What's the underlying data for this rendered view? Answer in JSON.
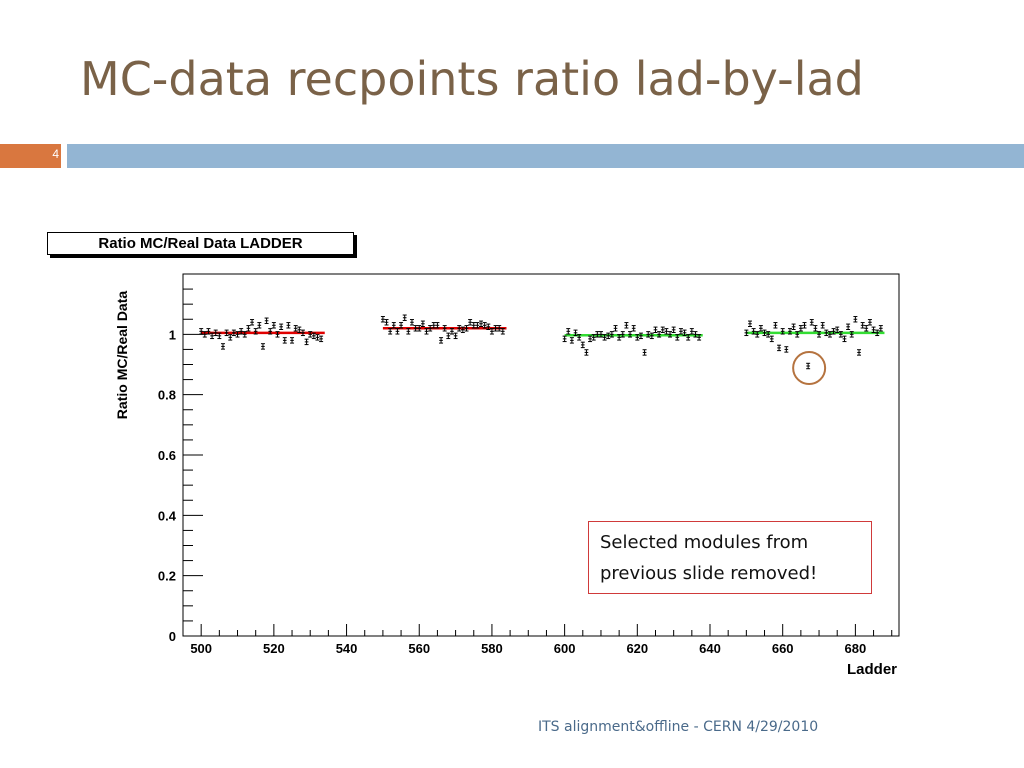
{
  "slide": {
    "title": "MC-data recpoints ratio lad-by-lad",
    "number": "4",
    "footer": "ITS alignment&offline - CERN 4/29/2010",
    "note_line1": "Selected modules from",
    "note_line2": "previous slide removed!"
  },
  "colors": {
    "title": "#7a6248",
    "number_box": "#d9773f",
    "title_bar": "#93b5d3",
    "fit_red": "#e00000",
    "fit_green": "#33dd33",
    "highlight_circle": "#b5733f",
    "note_border": "#d03a3a"
  },
  "chart_data": {
    "type": "scatter",
    "title": "Ratio MC/Real Data LADDER",
    "xlabel": "Ladder",
    "ylabel": "Ratio MC/Real Data",
    "xlim": [
      495,
      692
    ],
    "ylim": [
      0,
      1.2
    ],
    "x_ticks": [
      500,
      520,
      540,
      560,
      580,
      600,
      620,
      640,
      660,
      680
    ],
    "y_ticks": [
      0,
      0.2,
      0.4,
      0.6,
      0.8,
      1
    ],
    "y_tick_labels": [
      "0",
      "0.2",
      "0.4",
      "0.6",
      "0.8",
      "1"
    ],
    "error": 0.009,
    "fits": [
      {
        "x0": 500,
        "x1": 534,
        "y": 1.005,
        "color": "#e00000"
      },
      {
        "x0": 550,
        "x1": 584,
        "y": 1.02,
        "color": "#e00000"
      },
      {
        "x0": 600,
        "x1": 638,
        "y": 0.997,
        "color": "#33dd33"
      },
      {
        "x0": 650,
        "x1": 688,
        "y": 1.005,
        "color": "#33dd33"
      }
    ],
    "series": [
      {
        "x": [
          500,
          501,
          502,
          503,
          504,
          505,
          506,
          507,
          508,
          509,
          510,
          511,
          512,
          513,
          514,
          515,
          516,
          517,
          518,
          519,
          520,
          521,
          522,
          523,
          524,
          525,
          526,
          527,
          528,
          529,
          530,
          531,
          532,
          533
        ],
        "values": [
          1.01,
          1.0,
          1.01,
          0.995,
          1.005,
          0.995,
          0.96,
          1.005,
          0.99,
          1.005,
          1.0,
          1.01,
          1.0,
          1.02,
          1.04,
          1.01,
          1.03,
          0.96,
          1.045,
          1.01,
          1.03,
          1.0,
          1.025,
          0.98,
          1.03,
          0.98,
          1.02,
          1.015,
          1.005,
          0.975,
          1.0,
          0.995,
          0.99,
          0.985
        ]
      },
      {
        "x": [
          550,
          551,
          552,
          553,
          554,
          555,
          556,
          557,
          558,
          559,
          560,
          561,
          562,
          563,
          564,
          565,
          566,
          567,
          568,
          569,
          570,
          571,
          572,
          573,
          574,
          575,
          576,
          577,
          578,
          579,
          580,
          581,
          582,
          583
        ],
        "values": [
          1.05,
          1.04,
          1.01,
          1.03,
          1.01,
          1.03,
          1.055,
          1.01,
          1.04,
          1.02,
          1.02,
          1.035,
          1.01,
          1.02,
          1.03,
          1.03,
          0.98,
          1.02,
          0.995,
          1.01,
          0.995,
          1.02,
          1.015,
          1.02,
          1.04,
          1.03,
          1.03,
          1.035,
          1.03,
          1.025,
          1.01,
          1.02,
          1.02,
          1.01
        ]
      },
      {
        "x": [
          600,
          601,
          602,
          603,
          604,
          605,
          606,
          607,
          608,
          609,
          610,
          611,
          612,
          613,
          614,
          615,
          616,
          617,
          618,
          619,
          620,
          621,
          622,
          623,
          624,
          625,
          626,
          627,
          628,
          629,
          630,
          631,
          632,
          633,
          634,
          635,
          636,
          637
        ],
        "values": [
          0.985,
          1.01,
          0.98,
          1.005,
          0.99,
          0.965,
          0.94,
          0.985,
          0.99,
          1.0,
          1.0,
          0.99,
          0.995,
          1.0,
          1.02,
          0.99,
          1.0,
          1.03,
          1.0,
          1.02,
          0.99,
          0.995,
          0.94,
          1.0,
          0.995,
          1.015,
          1.0,
          1.015,
          1.01,
          1.0,
          1.015,
          0.99,
          1.01,
          1.005,
          0.99,
          1.01,
          1.0,
          0.99
        ]
      },
      {
        "x": [
          650,
          651,
          652,
          653,
          654,
          655,
          656,
          657,
          658,
          659,
          660,
          661,
          662,
          663,
          664,
          665,
          666,
          667,
          668,
          669,
          670,
          671,
          672,
          673,
          674,
          675,
          676,
          677,
          678,
          679,
          680,
          681,
          682,
          683,
          684,
          685,
          686,
          687
        ],
        "values": [
          1.005,
          1.035,
          1.01,
          1.0,
          1.02,
          1.005,
          1.0,
          0.985,
          1.03,
          0.955,
          1.01,
          0.95,
          1.01,
          1.025,
          1.0,
          1.02,
          1.03,
          0.895,
          1.04,
          1.02,
          1.0,
          1.03,
          1.005,
          1.0,
          1.01,
          1.015,
          1.0,
          0.985,
          1.025,
          1.0,
          1.05,
          0.94,
          1.03,
          1.02,
          1.04,
          1.015,
          1.005,
          1.02
        ]
      }
    ],
    "highlighted_point": {
      "x": 667,
      "y": 0.895
    }
  }
}
